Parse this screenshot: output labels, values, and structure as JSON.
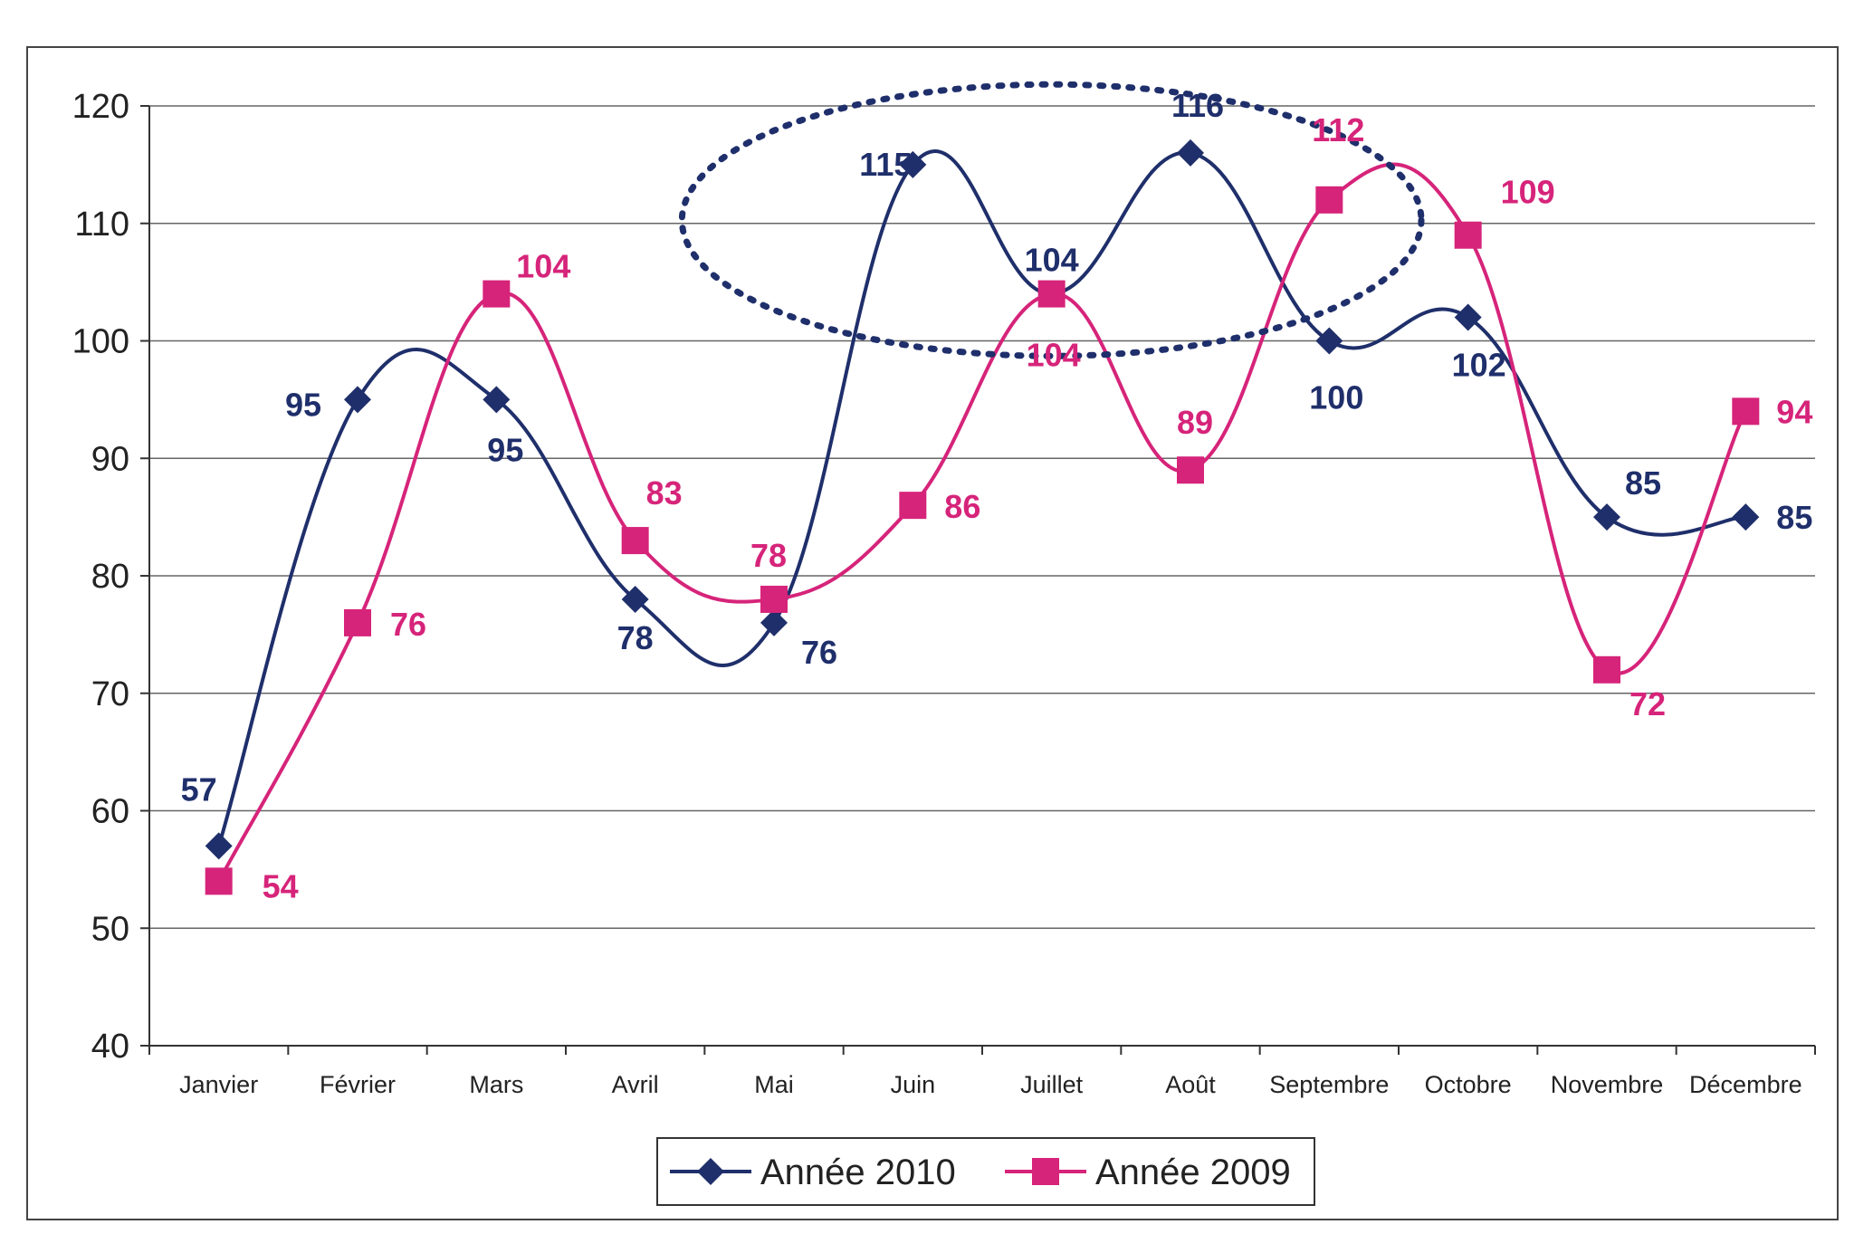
{
  "chart_data": {
    "type": "line",
    "categories": [
      "Janvier",
      "Février",
      "Mars",
      "Avril",
      "Mai",
      "Juin",
      "Juillet",
      "Août",
      "Septembre",
      "Octobre",
      "Novembre",
      "Décembre"
    ],
    "series": [
      {
        "name": "Année 2010",
        "values": [
          57,
          95,
          95,
          78,
          76,
          115,
          104,
          116,
          100,
          102,
          85,
          85
        ],
        "color": "#1f2f6b",
        "marker": "diamond"
      },
      {
        "name": "Année 2009",
        "values": [
          54,
          76,
          104,
          83,
          78,
          86,
          104,
          89,
          112,
          109,
          72,
          94
        ],
        "color": "#d6247a",
        "marker": "square"
      }
    ],
    "ylim": [
      40,
      120
    ],
    "yticks": [
      "40",
      "50",
      "60",
      "70",
      "80",
      "90",
      "100",
      "110",
      "120"
    ],
    "grid": true,
    "legend": "bottom",
    "annotation": "dotted ellipse highlighting Juin–Août for Année 2010"
  }
}
